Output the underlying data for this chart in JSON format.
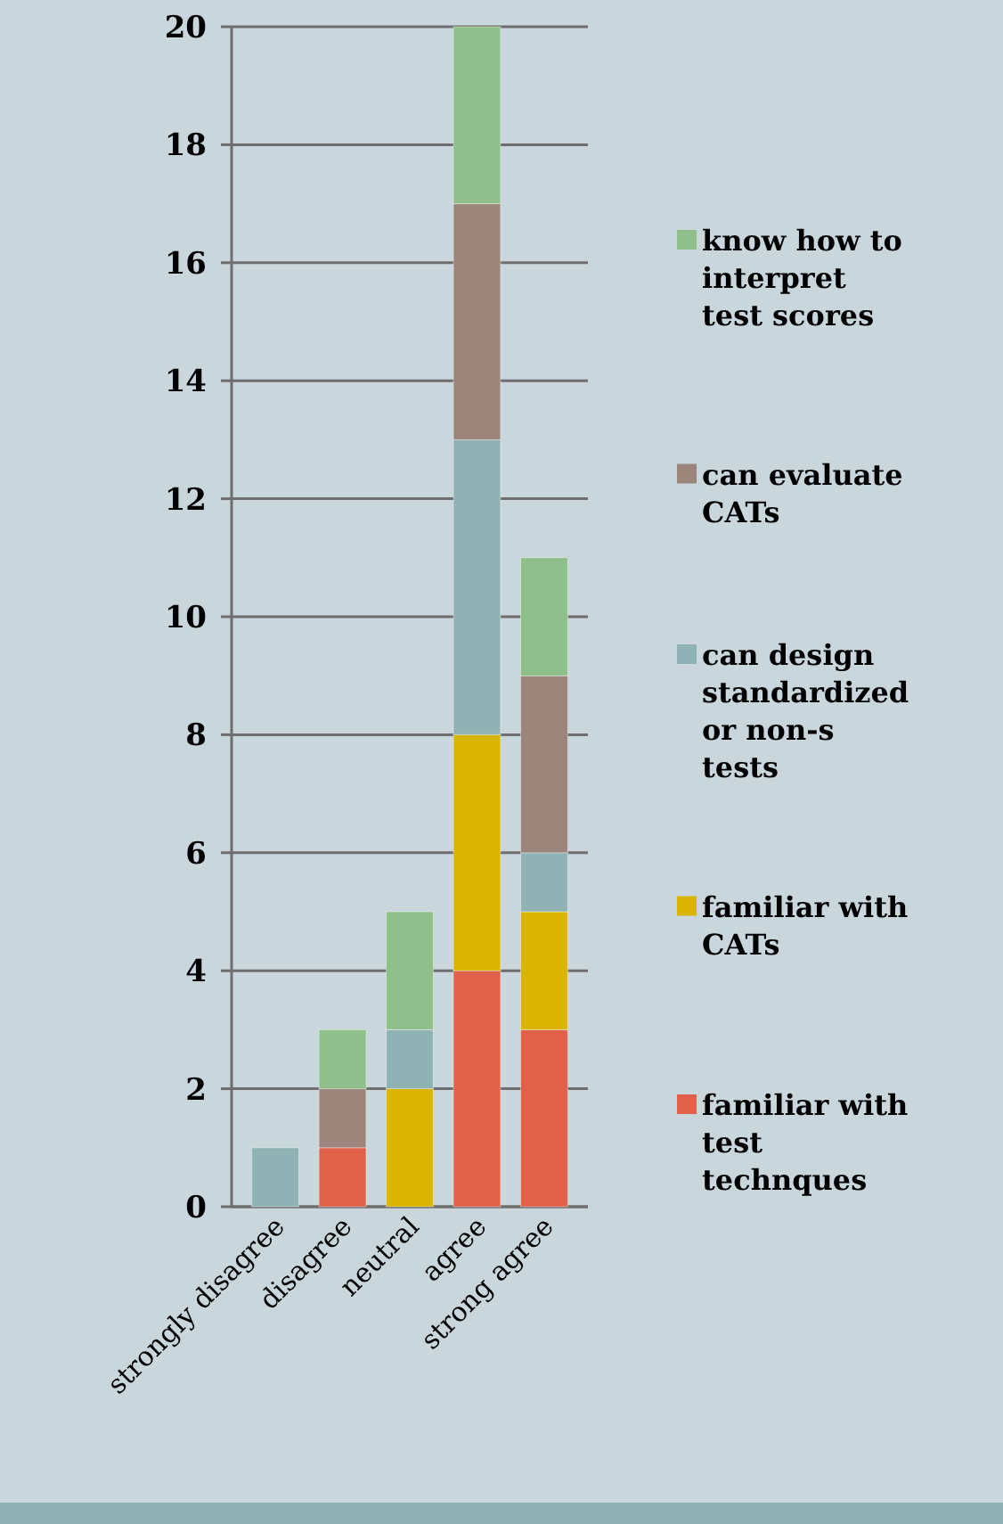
{
  "chart_data": {
    "type": "bar",
    "stacked": true,
    "categories": [
      "strongly disagree",
      "disagree",
      "neutral",
      "agree",
      "strong agree"
    ],
    "series": [
      {
        "name": "familiar with test technques",
        "color": "#e0604a",
        "values": [
          0,
          1,
          0,
          4,
          3
        ]
      },
      {
        "name": "familiar with CATs",
        "color": "#d9b400",
        "values": [
          0,
          0,
          2,
          4,
          2
        ]
      },
      {
        "name": "can design standardized or non-s tests",
        "color": "#8fb3b5",
        "values": [
          1,
          0,
          1,
          5,
          1
        ]
      },
      {
        "name": "can evaluate CATs",
        "color": "#9c857a",
        "values": [
          0,
          1,
          0,
          4,
          3
        ]
      },
      {
        "name": "know how to interpret test scores",
        "color": "#8fbf8a",
        "values": [
          0,
          1,
          2,
          3,
          2
        ]
      }
    ],
    "ylim": [
      0,
      20
    ],
    "yticks": [
      0,
      2,
      4,
      6,
      8,
      10,
      12,
      14,
      16,
      18,
      20
    ],
    "grid": "y",
    "legend": "right"
  }
}
